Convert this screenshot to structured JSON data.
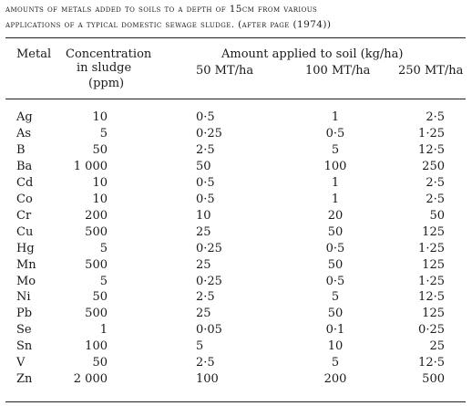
{
  "caption": {
    "line1": "amounts of metals added to soils to a depth of 15cm from various",
    "line2": "applications of a typical domestic sewage sludge. (after page (1974))"
  },
  "table": {
    "headers": {
      "metal": "Metal",
      "concentration": [
        "Concentration",
        "in sludge",
        "(ppm)"
      ],
      "amount_group": "Amount applied to soil (kg/ha)",
      "rates": [
        "50 MT/ha",
        "100 MT/ha",
        "250 MT/ha"
      ]
    },
    "rows": [
      {
        "metal": "Ag",
        "conc": "10",
        "a50": "0·5",
        "a100": "1",
        "a250": "2·5"
      },
      {
        "metal": "As",
        "conc": "5",
        "a50": "0·25",
        "a100": "0·5",
        "a250": "1·25"
      },
      {
        "metal": "B",
        "conc": "50",
        "a50": "2·5",
        "a100": "5",
        "a250": "12·5"
      },
      {
        "metal": "Ba",
        "conc": "1 000",
        "a50": "50",
        "a100": "100",
        "a250": "250"
      },
      {
        "metal": "Cd",
        "conc": "10",
        "a50": "0·5",
        "a100": "1",
        "a250": "2·5"
      },
      {
        "metal": "Co",
        "conc": "10",
        "a50": "0·5",
        "a100": "1",
        "a250": "2·5"
      },
      {
        "metal": "Cr",
        "conc": "200",
        "a50": "10",
        "a100": "20",
        "a250": "50"
      },
      {
        "metal": "Cu",
        "conc": "500",
        "a50": "25",
        "a100": "50",
        "a250": "125"
      },
      {
        "metal": "Hg",
        "conc": "5",
        "a50": "0·25",
        "a100": "0·5",
        "a250": "1·25"
      },
      {
        "metal": "Mn",
        "conc": "500",
        "a50": "25",
        "a100": "50",
        "a250": "125"
      },
      {
        "metal": "Mo",
        "conc": "5",
        "a50": "0·25",
        "a100": "0·5",
        "a250": "1·25"
      },
      {
        "metal": "Ni",
        "conc": "50",
        "a50": "2·5",
        "a100": "5",
        "a250": "12·5"
      },
      {
        "metal": "Pb",
        "conc": "500",
        "a50": "25",
        "a100": "50",
        "a250": "125"
      },
      {
        "metal": "Se",
        "conc": "1",
        "a50": "0·05",
        "a100": "0·1",
        "a250": "0·25"
      },
      {
        "metal": "Sn",
        "conc": "100",
        "a50": "5",
        "a100": "10",
        "a250": "25"
      },
      {
        "metal": "V",
        "conc": "50",
        "a50": "2·5",
        "a100": "5",
        "a250": "12·5"
      },
      {
        "metal": "Zn",
        "conc": "2 000",
        "a50": "100",
        "a100": "200",
        "a250": "500"
      }
    ]
  }
}
